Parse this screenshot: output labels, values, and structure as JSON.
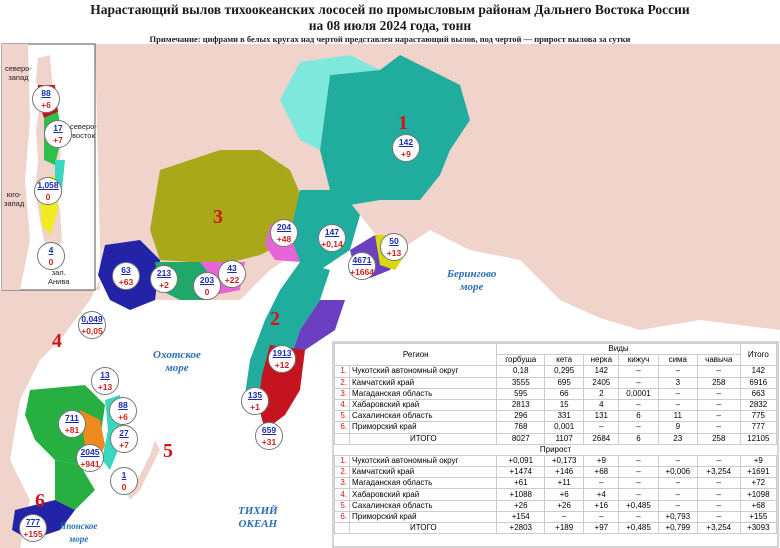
{
  "title_line1": "Нарастающий вылов тихоокеанских лососей по промысловым районам Дальнего Востока России",
  "title_line2": "на 08 июля 2024 года, тонн",
  "note": "Примечание: цифрами в белых кругах над чертой представлен нарастающий вылов, под чертой — прирост вылова за сутки",
  "colors": {
    "water": "#ffffff",
    "ocean_text": "#2a6fb7",
    "red": "#d01515",
    "blue": "#1a2bb0"
  },
  "region_numbers": [
    {
      "id": "1",
      "label": "1"
    },
    {
      "id": "2",
      "label": "2"
    },
    {
      "id": "3",
      "label": "3"
    },
    {
      "id": "4",
      "label": "4"
    },
    {
      "id": "5",
      "label": "5"
    },
    {
      "id": "6",
      "label": "6"
    }
  ],
  "seas": {
    "bering": "Берингово\nморе",
    "okhotsk": "Охотское\nморе",
    "pacific": "ТИХИЙ\nОКЕАН",
    "japan": "Японское\nморе"
  },
  "inset_labels": {
    "nw": "северо-\nзапад",
    "ne": "северо-\nвосток",
    "sw": "юго-\nзапад",
    "aniva": "зал.\nАнива"
  },
  "circles": [
    {
      "v": "142",
      "p": "+9"
    },
    {
      "v": "147",
      "p": "+0,14"
    },
    {
      "v": "4671",
      "p": "+1664"
    },
    {
      "v": "50",
      "p": "+13"
    },
    {
      "v": "1913",
      "p": "+12"
    },
    {
      "v": "135",
      "p": "+1"
    },
    {
      "v": "659",
      "p": "+31"
    },
    {
      "v": "204",
      "p": "+48"
    },
    {
      "v": "43",
      "p": "+22"
    },
    {
      "v": "203",
      "p": "0"
    },
    {
      "v": "213",
      "p": "+2"
    },
    {
      "v": "63",
      "p": "+63"
    },
    {
      "v": "0,049",
      "p": "+0,05"
    },
    {
      "v": "13",
      "p": "+13"
    },
    {
      "v": "88",
      "p": "+6"
    },
    {
      "v": "711",
      "p": "+81"
    },
    {
      "v": "27",
      "p": "+7"
    },
    {
      "v": "2045",
      "p": "+941"
    },
    {
      "v": "1",
      "p": "0"
    },
    {
      "v": "777",
      "p": "+155"
    },
    {
      "v": "88",
      "p": "+6"
    },
    {
      "v": "17",
      "p": "+7"
    },
    {
      "v": "1,058",
      "p": "0"
    },
    {
      "v": "4",
      "p": "0"
    }
  ],
  "table1": {
    "h_region": "Регион",
    "h_species": "Виды",
    "h_total": "Итого",
    "species": [
      "горбуша",
      "кета",
      "нерка",
      "кижуч",
      "сима",
      "чавыча"
    ],
    "rows": [
      {
        "n": "1.",
        "name": "Чукотский автономный округ",
        "vals": [
          "0,18",
          "0,295",
          "142",
          "–",
          "–",
          "–"
        ],
        "total": "142"
      },
      {
        "n": "2.",
        "name": "Камчатский край",
        "vals": [
          "3555",
          "695",
          "2405",
          "–",
          "3",
          "258"
        ],
        "total": "6916"
      },
      {
        "n": "3.",
        "name": "Магаданская область",
        "vals": [
          "595",
          "66",
          "2",
          "0,0001",
          "–",
          "–"
        ],
        "total": "663"
      },
      {
        "n": "4.",
        "name": "Хабаровский край",
        "vals": [
          "2813",
          "15",
          "4",
          "–",
          "–",
          "–"
        ],
        "total": "2832"
      },
      {
        "n": "5.",
        "name": "Сахалинская область",
        "vals": [
          "296",
          "331",
          "131",
          "6",
          "11",
          "–"
        ],
        "total": "775"
      },
      {
        "n": "6.",
        "name": "Приморский край",
        "vals": [
          "768",
          "0,001",
          "–",
          "–",
          "9",
          "–"
        ],
        "total": "777"
      }
    ],
    "sum": {
      "name": "ИТОГО",
      "vals": [
        "8027",
        "1107",
        "2684",
        "6",
        "23",
        "258"
      ],
      "total": "12105"
    }
  },
  "table2": {
    "h": "Прирост",
    "rows": [
      {
        "n": "1.",
        "name": "Чукотский автономный округ",
        "vals": [
          "+0,091",
          "+0,173",
          "+9",
          "–",
          "–",
          "–"
        ],
        "total": "+9"
      },
      {
        "n": "2.",
        "name": "Камчатский край",
        "vals": [
          "+1474",
          "+146",
          "+68",
          "–",
          "+0,006",
          "+3,254"
        ],
        "total": "+1691"
      },
      {
        "n": "3.",
        "name": "Магаданская область",
        "vals": [
          "+61",
          "+11",
          "–",
          "–",
          "–",
          "–"
        ],
        "total": "+72"
      },
      {
        "n": "4.",
        "name": "Хабаровский край",
        "vals": [
          "+1088",
          "+6",
          "+4",
          "–",
          "–",
          "–"
        ],
        "total": "+1098"
      },
      {
        "n": "5.",
        "name": "Сахалинская область",
        "vals": [
          "+26",
          "+26",
          "+16",
          "+0,485",
          "–",
          "–"
        ],
        "total": "+68"
      },
      {
        "n": "6.",
        "name": "Приморский край",
        "vals": [
          "+154",
          "–",
          "–",
          "–",
          "+0,793",
          "–"
        ],
        "total": "+155"
      }
    ],
    "sum": {
      "name": "ИТОГО",
      "vals": [
        "+2803",
        "+189",
        "+97",
        "+0,485",
        "+0,799",
        "+3,254"
      ],
      "total": "+3093"
    }
  }
}
